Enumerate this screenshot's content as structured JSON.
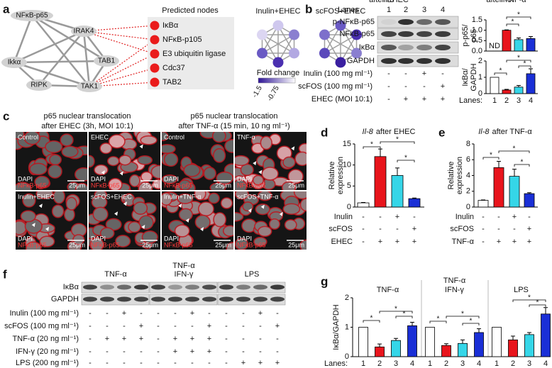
{
  "figure": {
    "panel_labels": [
      "a",
      "b",
      "c",
      "d",
      "e",
      "f",
      "g"
    ],
    "a": {
      "network_nodes": [
        "NFκB-p65",
        "IRAK4",
        "Ikkα",
        "TAB1",
        "RIPK",
        "TAK1"
      ],
      "predicted_title": "Predicted nodes",
      "predicted_nodes": [
        "IκBα",
        "NFκB-p105",
        "E3 ubiquitin ligase",
        "Cdc37",
        "TAB2"
      ],
      "network_titles": [
        "Inulin+EHEC",
        "scFOS+EHEC"
      ],
      "legend_title": "Fold change",
      "legend_ticks": [
        -1.5,
        -0.75
      ]
    },
    "b": {
      "lanes_label": "Lanes",
      "lanes": [
        "1",
        "2",
        "3",
        "4"
      ],
      "blot_rows": [
        "p-NFκB-p65",
        "NFκB-p65",
        "IκBα",
        "GAPDH"
      ],
      "treatments": [
        {
          "label": "Inulin (100 mg ml⁻¹)",
          "signs": [
            "-",
            "-",
            "+",
            "-"
          ]
        },
        {
          "label": "scFOS (100 mg ml⁻¹)",
          "signs": [
            "-",
            "-",
            "-",
            "+"
          ]
        },
        {
          "label": "EHEC (MOI 10:1)",
          "signs": [
            "-",
            "+",
            "+",
            "+"
          ]
        }
      ]
    },
    "c": {
      "titles": [
        [
          "p65 nuclear translocation",
          "after EHEC (3h, MOI 10:1)"
        ],
        [
          "p65 nuclear translocation",
          "after TNF-α (15 min, 10 ng ml⁻¹)"
        ]
      ],
      "tiles": [
        "Control",
        "EHEC",
        "Control",
        "TNF-α",
        "Inulin+EHEC",
        "scFOS+EHEC",
        "Inulin+TNF-α",
        "scFOS+TNF-α"
      ],
      "stains": [
        "DAPI",
        "NFκB-p65"
      ],
      "scale_bar": "25μm"
    },
    "d": {
      "treatments": [
        {
          "label": "Inulin",
          "signs": [
            "-",
            "-",
            "+",
            "-"
          ]
        },
        {
          "label": "scFOS",
          "signs": [
            "-",
            "-",
            "-",
            "+"
          ]
        },
        {
          "label": "EHEC",
          "signs": [
            "-",
            "+",
            "+",
            "+"
          ]
        }
      ]
    },
    "e": {
      "treatments": [
        {
          "label": "Inulin",
          "signs": [
            "-",
            "-",
            "+",
            "-"
          ]
        },
        {
          "label": "scFOS",
          "signs": [
            "-",
            "-",
            "-",
            "+"
          ]
        },
        {
          "label": "TNF-α",
          "signs": [
            "-",
            "+",
            "+",
            "+"
          ]
        }
      ]
    },
    "f": {
      "groups": [
        [
          "TNF-α"
        ],
        [
          "TNF-α",
          "IFN-γ"
        ],
        [
          "LPS"
        ]
      ],
      "blot_rows": [
        "IκBα",
        "GAPDH"
      ],
      "treatments": [
        {
          "label": "Inulin (100 mg ml⁻¹)",
          "signs": [
            "-",
            "-",
            "+",
            "-",
            "-",
            "-",
            "+",
            "-",
            "-",
            "-",
            "+",
            "-"
          ]
        },
        {
          "label": "scFOS (100 mg ml⁻¹)",
          "signs": [
            "-",
            "-",
            "-",
            "+",
            "-",
            "-",
            "-",
            "+",
            "-",
            "-",
            "-",
            "+"
          ]
        },
        {
          "label": "TNF-α (20 ng ml⁻¹)",
          "signs": [
            "-",
            "+",
            "+",
            "+",
            "-",
            "+",
            "+",
            "+",
            "-",
            "-",
            "-",
            "-"
          ]
        },
        {
          "label": "IFN-γ (20 ng ml⁻¹)",
          "signs": [
            "-",
            "-",
            "-",
            "-",
            "-",
            "+",
            "+",
            "+",
            "-",
            "-",
            "-",
            "-"
          ]
        },
        {
          "label": "LPS (200 ng ml⁻¹)",
          "signs": [
            "-",
            "-",
            "-",
            "-",
            "-",
            "-",
            "-",
            "-",
            "-",
            "+",
            "+",
            "+"
          ]
        }
      ]
    }
  },
  "chart_data": [
    {
      "type": "bar",
      "ylabel": [
        "p-p65/",
        "p65"
      ],
      "values": [
        null,
        1.0,
        0.55,
        0.6
      ],
      "errors": [
        null,
        0.02,
        0.08,
        0.1
      ],
      "value_labels": [
        "ND",
        null,
        null,
        null
      ],
      "colors": [
        "#ffffff",
        "#e8141c",
        "#35d6e8",
        "#1a2fd6"
      ],
      "ylim": [
        0,
        1.5
      ],
      "yticks": [
        {
          "value": 0,
          "label": "0.0"
        },
        0.5,
        {
          "value": 1,
          "label": "1.0"
        },
        1.5
      ],
      "significance": [
        "*",
        "*"
      ]
    },
    {
      "type": "bar",
      "ylabel": [
        "IκBα/",
        "GAPDH"
      ],
      "xlabel": "Lanes:",
      "categories": [
        "1",
        "2",
        "3",
        "4"
      ],
      "values": [
        1.0,
        0.22,
        0.4,
        1.22
      ],
      "errors": [
        null,
        0.04,
        0.1,
        0.3
      ],
      "colors": [
        "#ffffff",
        "#e8141c",
        "#35d6e8",
        "#1a2fd6"
      ],
      "ylim": [
        0,
        2
      ],
      "yticks": [
        0,
        1,
        2
      ],
      "significance": [
        "*",
        "*",
        "*"
      ]
    },
    {
      "type": "bar",
      "title": [
        "Il-8",
        "after EHEC"
      ],
      "ylabel": [
        "Relative",
        "expression"
      ],
      "values": [
        1.0,
        12,
        7.5,
        2.0
      ],
      "errors": [
        0.1,
        1.8,
        1.8,
        0.15
      ],
      "colors": [
        "#ffffff",
        "#e8141c",
        "#35d6e8",
        "#1a2fd6"
      ],
      "ylim": [
        0,
        15
      ],
      "yticks": [
        0,
        5,
        10,
        15
      ],
      "significance": [
        "*",
        "*",
        "*"
      ]
    },
    {
      "type": "bar",
      "title": [
        "Il-8",
        "after TNF-α"
      ],
      "ylabel": [
        "Relative",
        "expression"
      ],
      "values": [
        0.85,
        5.0,
        3.9,
        1.7
      ],
      "errors": [
        0.05,
        0.8,
        0.9,
        0.12
      ],
      "colors": [
        "#ffffff",
        "#e8141c",
        "#35d6e8",
        "#1a2fd6"
      ],
      "ylim": [
        0,
        8
      ],
      "yticks": [
        0,
        2,
        4,
        6,
        8
      ],
      "significance": [
        "*",
        "*",
        "*"
      ]
    },
    {
      "type": "bar",
      "ylabel": "IκBα/GAPDH",
      "xlabel": "Lanes:",
      "categories": [
        "1",
        "2",
        "3",
        "4"
      ],
      "colors": [
        "#ffffff",
        "#e8141c",
        "#35d6e8",
        "#1a2fd6"
      ],
      "ylim": [
        0,
        2
      ],
      "yticks": [
        0,
        1,
        2
      ],
      "groups": [
        {
          "title": [
            "TNF-α"
          ],
          "values": [
            1.0,
            0.33,
            0.55,
            1.05
          ],
          "errors": [
            null,
            0.1,
            0.07,
            0.12
          ],
          "significance": [
            "*",
            "*",
            "*"
          ]
        },
        {
          "title": [
            "TNF-α",
            "IFN-γ"
          ],
          "values": [
            1.0,
            0.38,
            0.45,
            0.82
          ],
          "errors": [
            null,
            0.06,
            0.12,
            0.13
          ],
          "significance": [
            "*",
            "*",
            "*"
          ]
        },
        {
          "title": [
            "LPS"
          ],
          "values": [
            1.0,
            0.57,
            0.75,
            1.45
          ],
          "errors": [
            null,
            0.13,
            0.07,
            0.22
          ],
          "significance": [
            "*",
            "*"
          ]
        }
      ]
    }
  ]
}
